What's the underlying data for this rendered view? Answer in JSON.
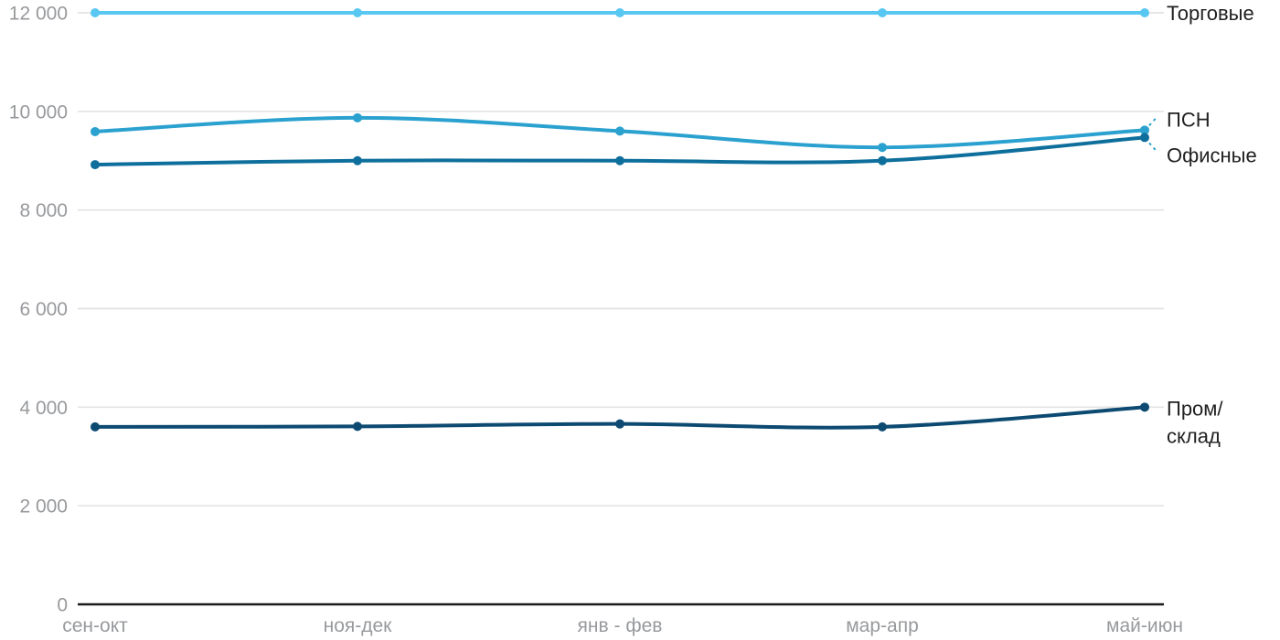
{
  "chart_data": {
    "type": "line",
    "title": "",
    "categories": [
      "сен-окт",
      "ноя-дек",
      "янв - фев",
      "мар-апр",
      "май-июн"
    ],
    "series": [
      {
        "key": "torgovye",
        "name": "Торговые",
        "label_lines": [
          "Торговые"
        ],
        "values": [
          12000,
          12000,
          12000,
          12000,
          12000
        ],
        "color": "#58C7F2",
        "leader": null
      },
      {
        "key": "psn",
        "name": "ПСН",
        "label_lines": [
          "ПСН"
        ],
        "values": [
          9590,
          9870,
          9600,
          9270,
          9620
        ],
        "color": "#2AA1CF",
        "leader": "up"
      },
      {
        "key": "ofisnye",
        "name": "Офисные",
        "label_lines": [
          "Офисные"
        ],
        "values": [
          8920,
          9000,
          9000,
          9000,
          9470
        ],
        "color": "#0E6F9C",
        "leader": "down"
      },
      {
        "key": "prom-sklad",
        "name": "Пром/склад",
        "label_lines": [
          "Пром/",
          "склад"
        ],
        "values": [
          3600,
          3610,
          3660,
          3600,
          4000
        ],
        "color": "#0D4A72",
        "leader": null
      }
    ],
    "xlabel": "",
    "ylabel": "",
    "ylim": [
      0,
      12000
    ],
    "yticks": [
      0,
      2000,
      4000,
      6000,
      8000,
      10000,
      12000
    ],
    "ytick_labels": [
      "0",
      "2 000",
      "4 000",
      "6 000",
      "8 000",
      "10 000",
      "12 000"
    ],
    "grid": "horizontal",
    "legend_position": "right-edge-line-labels",
    "styles": {
      "background": "#FFFFFF",
      "grid_color": "#E3E3E3",
      "axis_line_color": "#191919",
      "tick_label_color": "#97999C",
      "series_label_color": "#212121",
      "leader_line_color": "#2AA1CF"
    }
  }
}
